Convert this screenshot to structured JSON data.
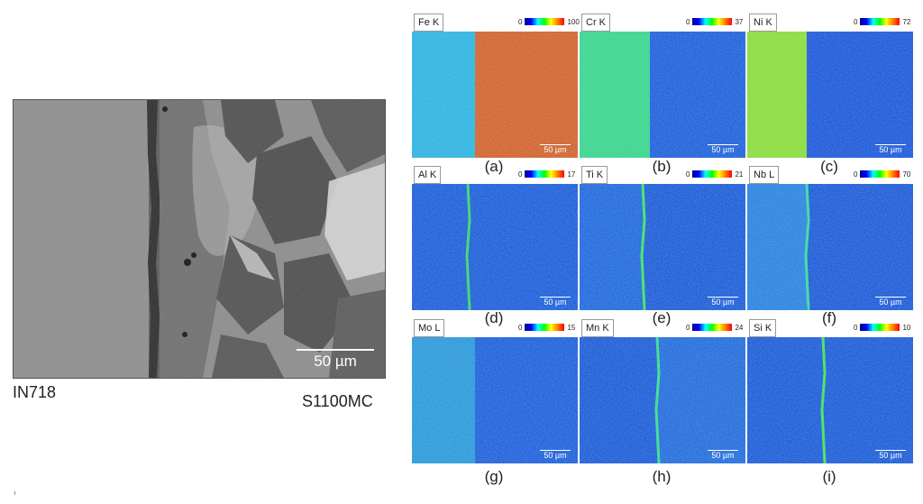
{
  "sem_image": {
    "scale_label": "50 µm",
    "left_material": "IN718",
    "right_material": "S1100MC"
  },
  "maps": [
    {
      "element": "Fe K",
      "min": "0",
      "max": "100",
      "scale": "50 µm",
      "letter": "(a)",
      "left_color": "#2fa8ef",
      "right_color": "#ee4a1c"
    },
    {
      "element": "Cr K",
      "min": "0",
      "max": "37",
      "scale": "50 µm",
      "letter": "(b)",
      "left_color": "#3bd08c",
      "right_color": "#1c48e8"
    },
    {
      "element": "Ni K",
      "min": "0",
      "max": "72",
      "scale": "50 µm",
      "letter": "(c)",
      "left_color": "#9ad82e",
      "right_color": "#1a3fe6"
    },
    {
      "element": "Al K",
      "min": "0",
      "max": "17",
      "scale": "50 µm",
      "letter": "(d)",
      "left_color": "#1a46e6",
      "right_color": "#1a46e6"
    },
    {
      "element": "Ti K",
      "min": "0",
      "max": "21",
      "scale": "50 µm",
      "letter": "(e)",
      "left_color": "#1e52ea",
      "right_color": "#1a44e4"
    },
    {
      "element": "Nb L",
      "min": "0",
      "max": "70",
      "scale": "50 µm",
      "letter": "(f)",
      "left_color": "#2a70ee",
      "right_color": "#1a42e4"
    },
    {
      "element": "Mo L",
      "min": "0",
      "max": "15",
      "scale": "50 µm",
      "letter": "(g)",
      "left_color": "#2a8ae6",
      "right_color": "#1c48e8"
    },
    {
      "element": "Mn K",
      "min": "0",
      "max": "24",
      "scale": "50 µm",
      "letter": "(h)",
      "left_color": "#1a44e4",
      "right_color": "#2256ea"
    },
    {
      "element": "Si K",
      "min": "0",
      "max": "10",
      "scale": "50 µm",
      "letter": "(i)",
      "left_color": "#1a44e4",
      "right_color": "#1a44e4"
    }
  ]
}
